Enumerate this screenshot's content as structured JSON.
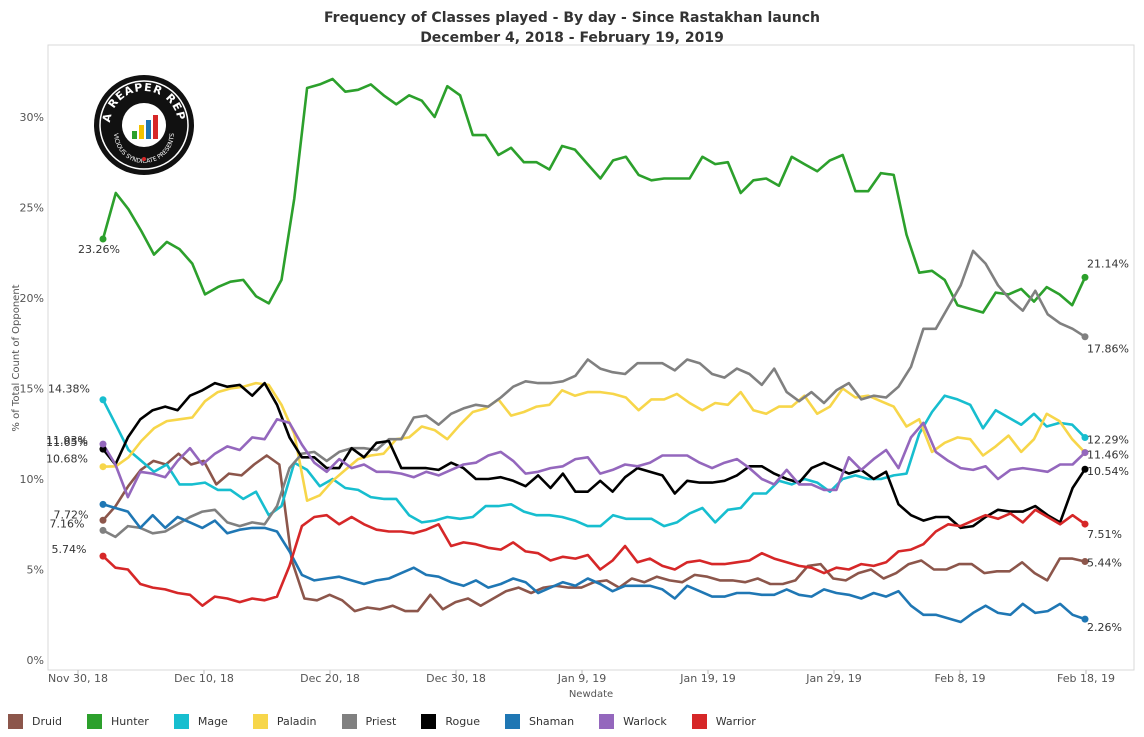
{
  "chart_data": {
    "type": "line",
    "title": "Frequency of Classes played - By day - Since Rastakhan launch",
    "subtitle": "December 4, 2018 - February 19, 2019",
    "xlabel": "Newdate",
    "ylabel": "% of Total Count of Opponent",
    "ylim": [
      0,
      34
    ],
    "x_tick_labels": [
      "Nov 30, 18",
      "Dec 10, 18",
      "Dec 20, 18",
      "Dec 30, 18",
      "Jan 9, 19",
      "Jan 19, 19",
      "Jan 29, 19",
      "Feb 8, 19",
      "Feb 18, 19"
    ],
    "y_tick_labels": [
      "0%",
      "5%",
      "10%",
      "15%",
      "20%",
      "25%",
      "30%"
    ],
    "grid": false,
    "legend_position": "bottom",
    "series": [
      {
        "name": "Druid",
        "color": "#8c564b",
        "start_label": "7.72%",
        "end_label": "5.44%",
        "values": [
          7.72,
          8.5,
          9.6,
          10.5,
          11.0,
          10.8,
          11.4,
          10.8,
          11.0,
          9.7,
          10.3,
          10.2,
          10.8,
          11.3,
          10.8,
          5.5,
          3.4,
          3.3,
          3.6,
          3.3,
          2.7,
          2.9,
          2.8,
          3.0,
          2.7,
          2.7,
          3.6,
          2.8,
          3.2,
          3.4,
          3.0,
          3.4,
          3.8,
          4.0,
          3.7,
          4.0,
          4.1,
          4.0,
          4.0,
          4.3,
          4.4,
          4.0,
          4.5,
          4.3,
          4.6,
          4.4,
          4.3,
          4.7,
          4.6,
          4.4,
          4.4,
          4.3,
          4.5,
          4.2,
          4.2,
          4.4,
          5.2,
          5.3,
          4.5,
          4.4,
          4.8,
          5.0,
          4.5,
          4.8,
          5.3,
          5.5,
          5.0,
          5.0,
          5.3,
          5.3,
          4.8,
          4.9,
          4.9,
          5.4,
          4.8,
          4.4,
          5.6,
          5.6,
          5.44
        ]
      },
      {
        "name": "Hunter",
        "color": "#2ca02c",
        "start_label": "23.26%",
        "end_label": "21.14%",
        "values": [
          23.26,
          25.8,
          24.9,
          23.7,
          22.4,
          23.1,
          22.7,
          21.9,
          20.2,
          20.6,
          20.9,
          21.0,
          20.1,
          19.7,
          21.0,
          25.5,
          31.6,
          31.8,
          32.1,
          31.4,
          31.5,
          31.8,
          31.2,
          30.7,
          31.2,
          30.9,
          30.0,
          31.7,
          31.2,
          29.0,
          29.0,
          27.9,
          28.3,
          27.5,
          27.5,
          27.1,
          28.4,
          28.2,
          27.4,
          26.6,
          27.6,
          27.8,
          26.8,
          26.5,
          26.6,
          26.6,
          26.6,
          27.8,
          27.4,
          27.5,
          25.8,
          26.5,
          26.6,
          26.2,
          27.8,
          27.4,
          27.0,
          27.6,
          27.9,
          25.9,
          25.9,
          26.9,
          26.8,
          23.5,
          21.4,
          21.5,
          21.0,
          19.6,
          19.4,
          19.2,
          20.3,
          20.2,
          20.5,
          19.8,
          20.6,
          20.2,
          19.6,
          21.14
        ]
      },
      {
        "name": "Mage",
        "color": "#17becf",
        "start_label": "14.38%",
        "end_label": "12.29%",
        "values": [
          14.38,
          13.0,
          11.6,
          11.0,
          10.4,
          10.8,
          9.7,
          9.7,
          9.8,
          9.4,
          9.4,
          8.9,
          9.3,
          8.0,
          8.5,
          10.9,
          10.5,
          9.6,
          10.0,
          9.5,
          9.4,
          9.0,
          8.9,
          8.9,
          8.0,
          7.6,
          7.7,
          7.9,
          7.8,
          7.9,
          8.5,
          8.5,
          8.6,
          8.2,
          8.0,
          8.0,
          7.9,
          7.7,
          7.4,
          7.4,
          8.0,
          7.8,
          7.8,
          7.8,
          7.4,
          7.6,
          8.1,
          8.4,
          7.6,
          8.3,
          8.4,
          9.2,
          9.2,
          9.9,
          9.7,
          10.0,
          9.8,
          9.3,
          10.0,
          10.2,
          10.0,
          10.0,
          10.2,
          10.3,
          12.5,
          13.7,
          14.6,
          14.4,
          14.1,
          12.8,
          13.8,
          13.4,
          13.0,
          13.6,
          12.9,
          13.1,
          13.0,
          12.29
        ]
      },
      {
        "name": "Paladin",
        "color": "#f7d64a",
        "start_label": "10.68%",
        "end_label": "11.46%",
        "values": [
          10.68,
          10.7,
          11.2,
          12.1,
          12.8,
          13.2,
          13.3,
          13.4,
          14.3,
          14.8,
          15.0,
          15.1,
          15.3,
          15.2,
          14.1,
          12.5,
          8.8,
          9.1,
          9.9,
          10.5,
          11.1,
          11.3,
          11.4,
          12.2,
          12.3,
          12.9,
          12.7,
          12.2,
          13.0,
          13.7,
          13.9,
          14.4,
          13.5,
          13.7,
          14.0,
          14.1,
          14.9,
          14.6,
          14.8,
          14.8,
          14.7,
          14.5,
          13.8,
          14.4,
          14.4,
          14.7,
          14.2,
          13.8,
          14.2,
          14.1,
          14.8,
          13.8,
          13.6,
          14.0,
          14.0,
          14.6,
          13.6,
          14.0,
          15.0,
          14.5,
          14.6,
          14.3,
          14.0,
          12.9,
          13.3,
          11.5,
          12.0,
          12.3,
          12.2,
          11.3,
          11.8,
          12.4,
          11.5,
          12.2,
          13.6,
          13.2,
          12.2,
          11.46
        ]
      },
      {
        "name": "Priest",
        "color": "#808080",
        "start_label": "7.16%",
        "end_label": "17.86%",
        "values": [
          7.16,
          6.8,
          7.4,
          7.3,
          7.0,
          7.1,
          7.5,
          7.9,
          8.2,
          8.3,
          7.6,
          7.4,
          7.6,
          7.5,
          8.5,
          10.6,
          11.4,
          11.5,
          11.0,
          11.5,
          11.7,
          11.7,
          11.6,
          12.2,
          12.2,
          13.4,
          13.5,
          13.0,
          13.6,
          13.9,
          14.1,
          14.0,
          14.5,
          15.1,
          15.4,
          15.3,
          15.3,
          15.4,
          15.7,
          16.6,
          16.1,
          15.9,
          15.8,
          16.4,
          16.4,
          16.4,
          16.0,
          16.6,
          16.4,
          15.8,
          15.6,
          16.1,
          15.8,
          15.2,
          16.1,
          14.8,
          14.3,
          14.8,
          14.2,
          14.9,
          15.3,
          14.4,
          14.6,
          14.5,
          15.1,
          16.2,
          18.3,
          18.3,
          19.5,
          20.7,
          22.6,
          21.9,
          20.7,
          19.9,
          19.3,
          20.4,
          19.1,
          18.6,
          18.3,
          17.86
        ]
      },
      {
        "name": "Rogue",
        "color": "#000000",
        "start_label": "11.65%",
        "end_label": "10.54%",
        "values": [
          11.65,
          10.8,
          12.3,
          13.3,
          13.8,
          14.0,
          13.8,
          14.6,
          14.9,
          15.3,
          15.1,
          15.2,
          14.6,
          15.3,
          14.1,
          12.3,
          11.2,
          11.2,
          10.6,
          10.6,
          11.7,
          11.2,
          12.0,
          12.1,
          10.6,
          10.6,
          10.6,
          10.5,
          10.9,
          10.6,
          10.0,
          10.0,
          10.1,
          9.9,
          9.6,
          10.2,
          9.5,
          10.3,
          9.3,
          9.3,
          9.9,
          9.3,
          10.1,
          10.6,
          10.4,
          10.2,
          9.2,
          9.9,
          9.8,
          9.8,
          9.9,
          10.2,
          10.7,
          10.7,
          10.3,
          10.0,
          9.8,
          10.6,
          10.9,
          10.6,
          10.3,
          10.5,
          10.0,
          10.4,
          8.6,
          8.0,
          7.7,
          7.9,
          7.9,
          7.3,
          7.4,
          7.9,
          8.3,
          8.2,
          8.2,
          8.5,
          8.0,
          7.6,
          9.5,
          10.54
        ]
      },
      {
        "name": "Shaman",
        "color": "#1f77b4",
        "start_label": "",
        "end_label": "2.26%",
        "values": [
          8.6,
          8.4,
          8.2,
          7.3,
          8.0,
          7.3,
          7.9,
          7.6,
          7.3,
          7.7,
          7.0,
          7.2,
          7.3,
          7.3,
          7.1,
          6.0,
          4.7,
          4.4,
          4.5,
          4.6,
          4.4,
          4.2,
          4.4,
          4.5,
          4.8,
          5.1,
          4.7,
          4.6,
          4.3,
          4.1,
          4.4,
          4.0,
          4.2,
          4.5,
          4.3,
          3.7,
          4.0,
          4.3,
          4.1,
          4.5,
          4.2,
          3.8,
          4.1,
          4.1,
          4.1,
          3.9,
          3.4,
          4.1,
          3.8,
          3.5,
          3.5,
          3.7,
          3.7,
          3.6,
          3.6,
          3.9,
          3.6,
          3.5,
          3.9,
          3.7,
          3.6,
          3.4,
          3.7,
          3.5,
          3.8,
          3.0,
          2.5,
          2.5,
          2.3,
          2.1,
          2.6,
          3.0,
          2.6,
          2.5,
          3.1,
          2.6,
          2.7,
          3.1,
          2.5,
          2.26
        ]
      },
      {
        "name": "Warlock",
        "color": "#9467bd",
        "start_label": "11.93%",
        "end_label": "",
        "values": [
          11.93,
          10.8,
          9.0,
          10.4,
          10.3,
          10.1,
          11.0,
          11.7,
          10.8,
          11.4,
          11.8,
          11.6,
          12.3,
          12.2,
          13.3,
          13.1,
          11.9,
          10.9,
          10.4,
          11.1,
          10.6,
          10.8,
          10.4,
          10.4,
          10.3,
          10.1,
          10.4,
          10.2,
          10.5,
          10.8,
          10.9,
          11.3,
          11.5,
          11.0,
          10.3,
          10.4,
          10.6,
          10.7,
          11.1,
          11.2,
          10.3,
          10.5,
          10.8,
          10.7,
          10.9,
          11.3,
          11.3,
          11.3,
          10.9,
          10.6,
          10.9,
          11.1,
          10.6,
          10.0,
          9.7,
          10.5,
          9.7,
          9.7,
          9.4,
          9.4,
          11.2,
          10.5,
          11.1,
          11.6,
          10.6,
          12.3,
          13.1,
          11.5,
          11.0,
          10.6,
          10.5,
          10.7,
          10.0,
          10.5,
          10.6,
          10.5,
          10.4,
          10.8,
          10.8,
          11.46
        ]
      },
      {
        "name": "Warrior",
        "color": "#d62728",
        "start_label": "5.74%",
        "end_label": "7.51%",
        "values": [
          5.74,
          5.1,
          5.0,
          4.2,
          4.0,
          3.9,
          3.7,
          3.6,
          3.0,
          3.5,
          3.4,
          3.2,
          3.4,
          3.3,
          3.5,
          5.2,
          7.4,
          7.9,
          8.0,
          7.5,
          7.9,
          7.5,
          7.2,
          7.1,
          7.1,
          7.0,
          7.2,
          7.5,
          6.3,
          6.5,
          6.4,
          6.2,
          6.1,
          6.5,
          6.0,
          5.9,
          5.5,
          5.7,
          5.6,
          5.8,
          5.0,
          5.5,
          6.3,
          5.4,
          5.6,
          5.2,
          5.0,
          5.4,
          5.5,
          5.3,
          5.3,
          5.4,
          5.5,
          5.9,
          5.6,
          5.4,
          5.2,
          5.1,
          4.8,
          5.1,
          5.0,
          5.3,
          5.2,
          5.4,
          6.0,
          6.1,
          6.4,
          7.1,
          7.5,
          7.4,
          7.7,
          8.0,
          7.8,
          8.1,
          7.6,
          8.3,
          7.9,
          7.5,
          8.0,
          7.51
        ]
      }
    ]
  }
}
